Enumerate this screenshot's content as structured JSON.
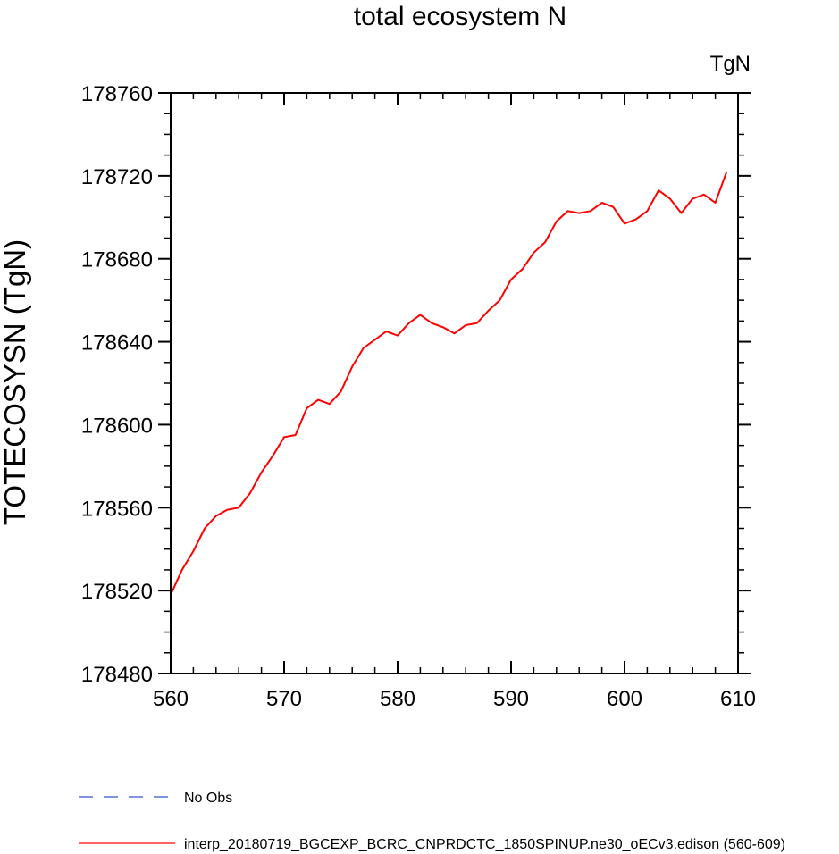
{
  "chart_data": {
    "type": "line",
    "title": "total ecosystem N",
    "units_label": "TgN",
    "ylabel": "TOTECOSYSN  (TgN)",
    "xlabel": "",
    "xlim": [
      560,
      610
    ],
    "ylim": [
      178480,
      178760
    ],
    "x_ticks": [
      560,
      570,
      580,
      590,
      600,
      610
    ],
    "y_ticks": [
      178480,
      178520,
      178560,
      178600,
      178640,
      178680,
      178720,
      178760
    ],
    "x_minor_step": 2,
    "y_minor_step": 10,
    "grid": false,
    "legend_placement": "bottom",
    "series": [
      {
        "name": "interp_20180719_BGCEXP_BCRC_CNPRDCTC_1850SPINUP.ne30_oECv3.edison (560-609)",
        "color": "#ff0000",
        "dash": "solid",
        "x": [
          560,
          561,
          562,
          563,
          564,
          565,
          566,
          567,
          568,
          569,
          570,
          571,
          572,
          573,
          574,
          575,
          576,
          577,
          578,
          579,
          580,
          581,
          582,
          583,
          584,
          585,
          586,
          587,
          588,
          589,
          590,
          591,
          592,
          593,
          594,
          595,
          596,
          597,
          598,
          599,
          600,
          601,
          602,
          603,
          604,
          605,
          606,
          607,
          608,
          609
        ],
        "values": [
          178518,
          178530,
          178539,
          178550,
          178556,
          178559,
          178560,
          178567,
          178577,
          178585,
          178594,
          178595,
          178608,
          178612,
          178610,
          178616,
          178628,
          178637,
          178641,
          178645,
          178643,
          178649,
          178653,
          178649,
          178647,
          178644,
          178648,
          178649,
          178655,
          178660,
          178670,
          178675,
          178683,
          178688,
          178698,
          178703,
          178702,
          178703,
          178707,
          178705,
          178697,
          178699,
          178703,
          178713,
          178709,
          178702,
          178709,
          178711,
          178707,
          178722
        ]
      }
    ],
    "legend": [
      {
        "label": "No Obs",
        "color": "#3355cc",
        "dash": "dashed"
      },
      {
        "label": "interp_20180719_BGCEXP_BCRC_CNPRDCTC_1850SPINUP.ne30_oECv3.edison (560-609)",
        "color": "#ff0000",
        "dash": "solid"
      }
    ]
  }
}
